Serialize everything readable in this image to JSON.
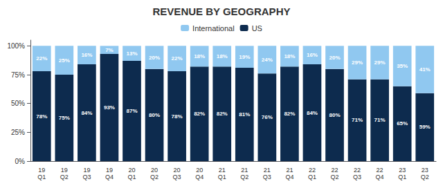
{
  "chart_data": {
    "type": "bar",
    "title": "REVENUE BY GEOGRAPHY",
    "categories": [
      "19\nQ1",
      "19\nQ2",
      "19\nQ3",
      "19\nQ4",
      "20\nQ1",
      "20\nQ2",
      "20\nQ3",
      "20\nQ4",
      "21\nQ1",
      "21\nQ2",
      "21\nQ3",
      "21\nQ4",
      "22\nQ1",
      "22\nQ2",
      "22\nQ3",
      "22\nQ4",
      "23\nQ1",
      "23\nQ2"
    ],
    "series": [
      {
        "name": "US",
        "color": "#0d2b4e",
        "values": [
          78,
          75,
          84,
          93,
          87,
          80,
          78,
          82,
          82,
          81,
          76,
          82,
          84,
          80,
          71,
          71,
          65,
          59
        ],
        "value_labels": [
          "78%",
          "75%",
          "84%",
          "93%",
          "87%",
          "80%",
          "78%",
          "82%",
          "82%",
          "81%",
          "76%",
          "82%",
          "84%",
          "80%",
          "71%",
          "71%",
          "65%",
          "59%"
        ]
      },
      {
        "name": "International",
        "color": "#90c8f0",
        "values": [
          22,
          25,
          16,
          7,
          13,
          20,
          22,
          18,
          18,
          19,
          24,
          18,
          16,
          20,
          29,
          29,
          35,
          41
        ],
        "value_labels": [
          "22%",
          "25%",
          "16%",
          "7%",
          "13%",
          "20%",
          "22%",
          "18%",
          "18%",
          "19%",
          "24%",
          "18%",
          "16%",
          "20%",
          "29%",
          "29%",
          "35%",
          "41%"
        ]
      }
    ],
    "stacked": true,
    "data_labels": true,
    "ylim": [
      0,
      105
    ],
    "yticks": [
      {
        "value": 0,
        "label": "0%"
      },
      {
        "value": 25,
        "label": "25%"
      },
      {
        "value": 50,
        "label": "50%"
      },
      {
        "value": 75,
        "label": "75%"
      },
      {
        "value": 100,
        "label": "100%"
      }
    ],
    "grid": false,
    "legend": "top"
  }
}
